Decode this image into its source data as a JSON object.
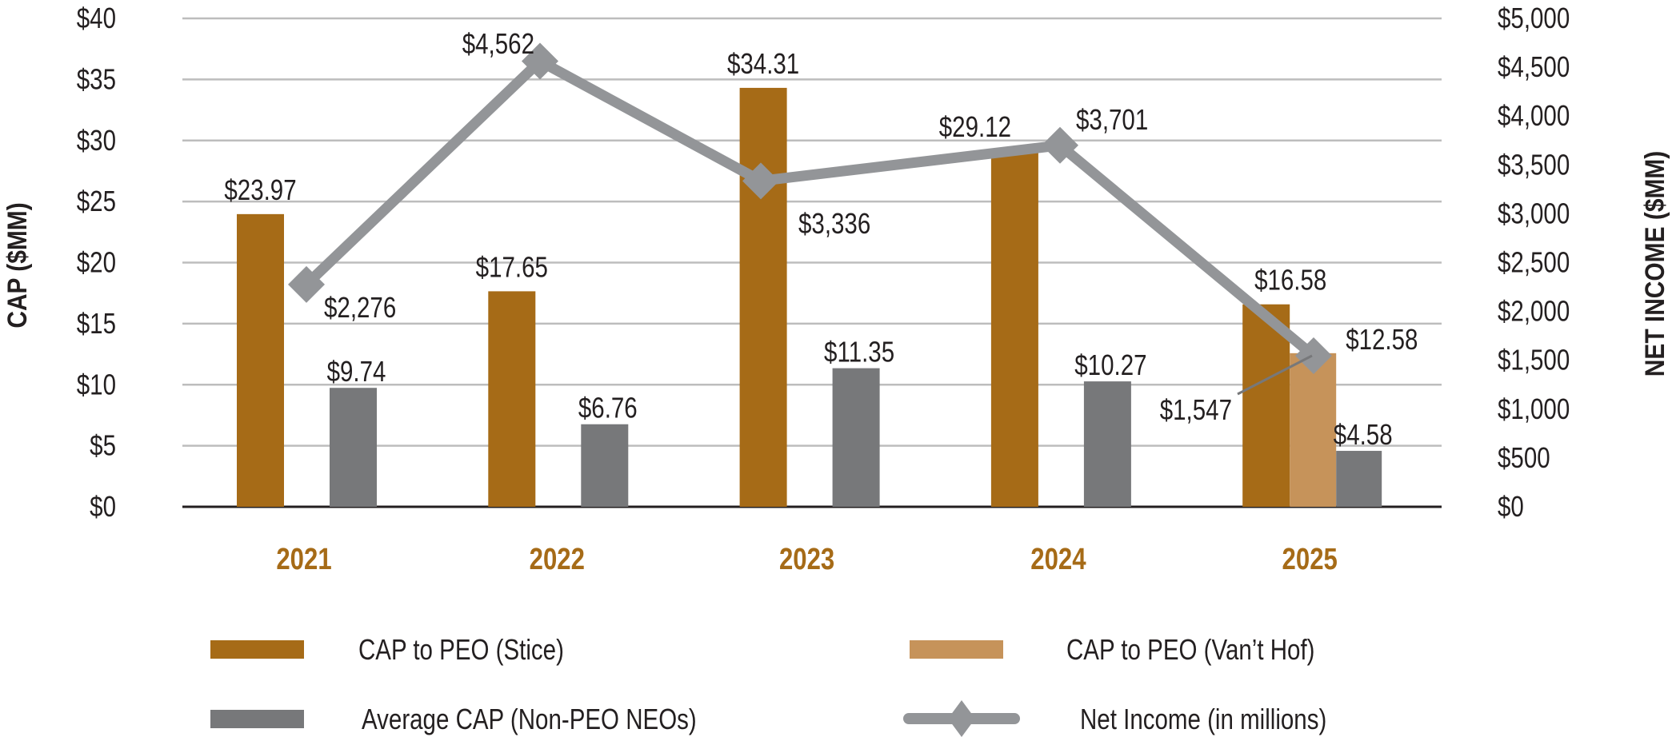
{
  "chart_data": {
    "type": "bar",
    "title": "",
    "categories": [
      "2021",
      "2022",
      "2023",
      "2024",
      "2025"
    ],
    "ylabel": "CAP ($MM)",
    "y2label": "NET INCOME ($MM)",
    "ylim": [
      0,
      40
    ],
    "y2lim": [
      0,
      5000
    ],
    "yticks": [
      "$0",
      "$5",
      "$10",
      "$15",
      "$20",
      "$25",
      "$30",
      "$35",
      "$40"
    ],
    "y2ticks": [
      "$0",
      "$500",
      "$1,000",
      "$1,500",
      "$2,000",
      "$2,500",
      "$3,000",
      "$3,500",
      "$4,000",
      "$4,500",
      "$5,000"
    ],
    "grid": true,
    "legend_position": "bottom",
    "series": [
      {
        "name": "CAP to PEO (Stice)",
        "type": "bar",
        "axis": "left",
        "color": "#a66b17",
        "values": [
          23.97,
          17.65,
          34.31,
          29.12,
          16.58
        ],
        "labels": [
          "$23.97",
          "$17.65",
          "$34.31",
          "$29.12",
          "$16.58"
        ]
      },
      {
        "name": "CAP to PEO (Van’t Hof)",
        "type": "bar",
        "axis": "left",
        "color": "#c6935a",
        "values": [
          null,
          null,
          null,
          null,
          12.58
        ],
        "labels": [
          null,
          null,
          null,
          null,
          "$12.58"
        ]
      },
      {
        "name": "Average CAP (Non-PEO NEOs)",
        "type": "bar",
        "axis": "left",
        "color": "#77787a",
        "values": [
          9.74,
          6.76,
          11.35,
          10.27,
          4.58
        ],
        "labels": [
          "$9.74",
          "$6.76",
          "$11.35",
          "$10.27",
          "$4.58"
        ]
      },
      {
        "name": "Net Income (in millions)",
        "type": "line",
        "axis": "right",
        "color": "#939598",
        "marker": "diamond",
        "values": [
          2276,
          4562,
          3336,
          3701,
          1547
        ],
        "labels": [
          "$2,276",
          "$4,562",
          "$3,336",
          "$3,701",
          "$1,547"
        ]
      }
    ],
    "legend": [
      {
        "label": "CAP to PEO (Stice)",
        "kind": "bar",
        "color": "#a66b17"
      },
      {
        "label": "CAP to PEO (Van’t Hof)",
        "kind": "bar",
        "color": "#c6935a"
      },
      {
        "label": "Average CAP (Non-PEO NEOs)",
        "kind": "bar",
        "color": "#77787a"
      },
      {
        "label": "Net Income (in millions)",
        "kind": "line",
        "color": "#939598"
      }
    ],
    "year_label_color": "#a66b17"
  }
}
